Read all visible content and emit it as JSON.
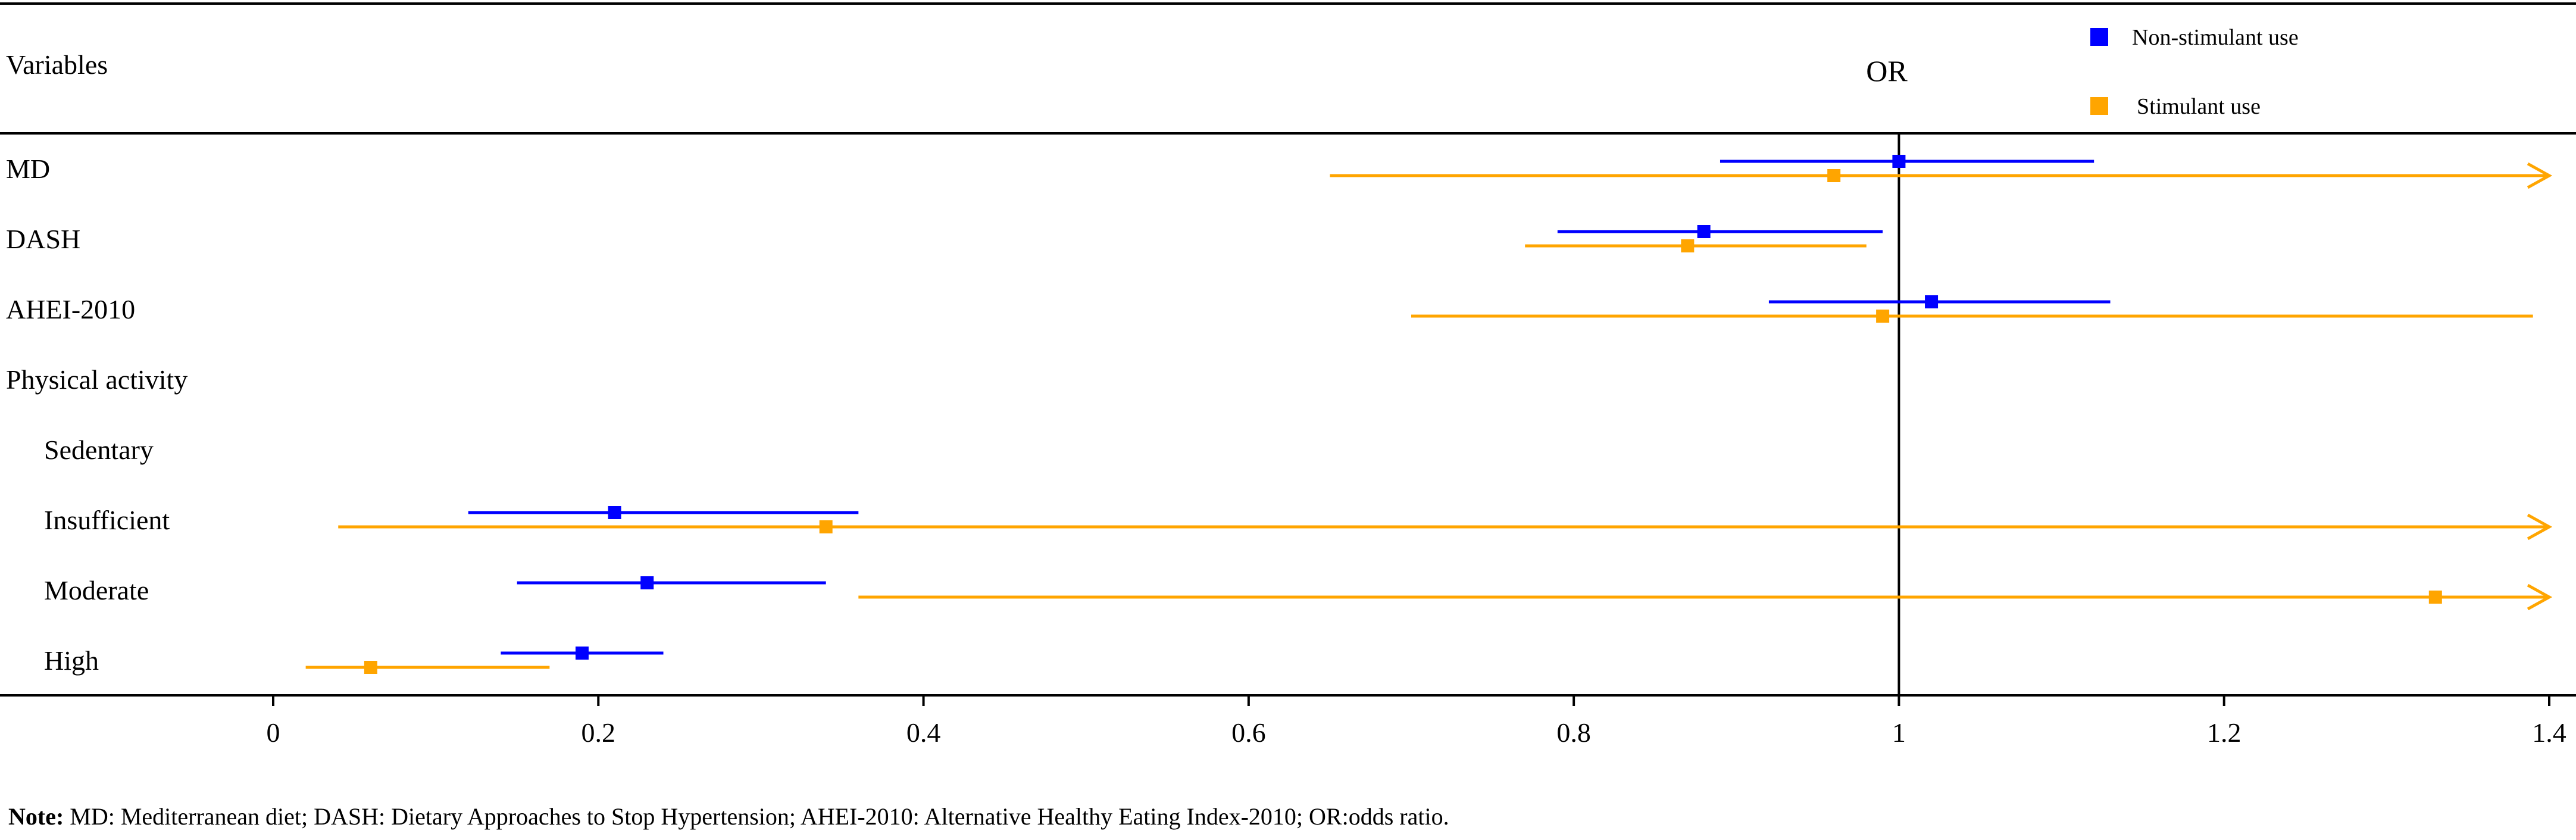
{
  "chart_data": {
    "type": "forest",
    "column_header": "Variables",
    "effect_label": "OR",
    "xlim": [
      -0.15,
      1.4
    ],
    "x_ticks": [
      0,
      0.2,
      0.4,
      0.6,
      0.8,
      1,
      1.2,
      1.4
    ],
    "x_tick_labels": [
      "0",
      "0.2",
      "0.4",
      "0.6",
      "0.8",
      "1",
      "1.2",
      "1.4"
    ],
    "reference_line": 1,
    "legend": {
      "position": "top-right"
    },
    "series": [
      {
        "name": "Non-stimulant use",
        "color": "#0000ff"
      },
      {
        "name": "Stimulant use",
        "color": "#ffa500"
      }
    ],
    "rows": [
      {
        "label": "MD",
        "indent": false,
        "estimates": [
          {
            "series": 0,
            "or": 1.0,
            "lower": 0.89,
            "upper": 1.12,
            "arrow": false
          },
          {
            "series": 1,
            "or": 0.96,
            "lower": 0.65,
            "upper": 1.4,
            "arrow": true
          }
        ]
      },
      {
        "label": "DASH",
        "indent": false,
        "estimates": [
          {
            "series": 0,
            "or": 0.88,
            "lower": 0.79,
            "upper": 0.99,
            "arrow": false
          },
          {
            "series": 1,
            "or": 0.87,
            "lower": 0.77,
            "upper": 0.98,
            "arrow": false
          }
        ]
      },
      {
        "label": "AHEI-2010",
        "indent": false,
        "estimates": [
          {
            "series": 0,
            "or": 1.02,
            "lower": 0.92,
            "upper": 1.13,
            "arrow": false
          },
          {
            "series": 1,
            "or": 0.99,
            "lower": 0.7,
            "upper": 1.39,
            "arrow": false
          }
        ]
      },
      {
        "label": "Physical activity",
        "indent": false,
        "estimates": []
      },
      {
        "label": "Sedentary",
        "indent": true,
        "estimates": []
      },
      {
        "label": "Insufficient",
        "indent": true,
        "estimates": [
          {
            "series": 0,
            "or": 0.21,
            "lower": 0.12,
            "upper": 0.36,
            "arrow": false
          },
          {
            "series": 1,
            "or": 0.34,
            "lower": 0.04,
            "upper": 1.4,
            "arrow": true
          }
        ]
      },
      {
        "label": "Moderate",
        "indent": true,
        "estimates": [
          {
            "series": 0,
            "or": 0.23,
            "lower": 0.15,
            "upper": 0.34,
            "arrow": false
          },
          {
            "series": 1,
            "or": 1.33,
            "lower": 0.36,
            "upper": 1.4,
            "arrow": true
          }
        ]
      },
      {
        "label": "High",
        "indent": true,
        "estimates": [
          {
            "series": 0,
            "or": 0.19,
            "lower": 0.14,
            "upper": 0.24,
            "arrow": false
          },
          {
            "series": 1,
            "or": 0.06,
            "lower": 0.02,
            "upper": 0.17,
            "arrow": false
          }
        ]
      }
    ]
  },
  "note": {
    "label": "Note:",
    "text": " MD: Mediterranean diet; DASH: Dietary Approaches to Stop Hypertension; AHEI-2010: Alternative Healthy Eating Index-2010; OR:odds ratio."
  }
}
